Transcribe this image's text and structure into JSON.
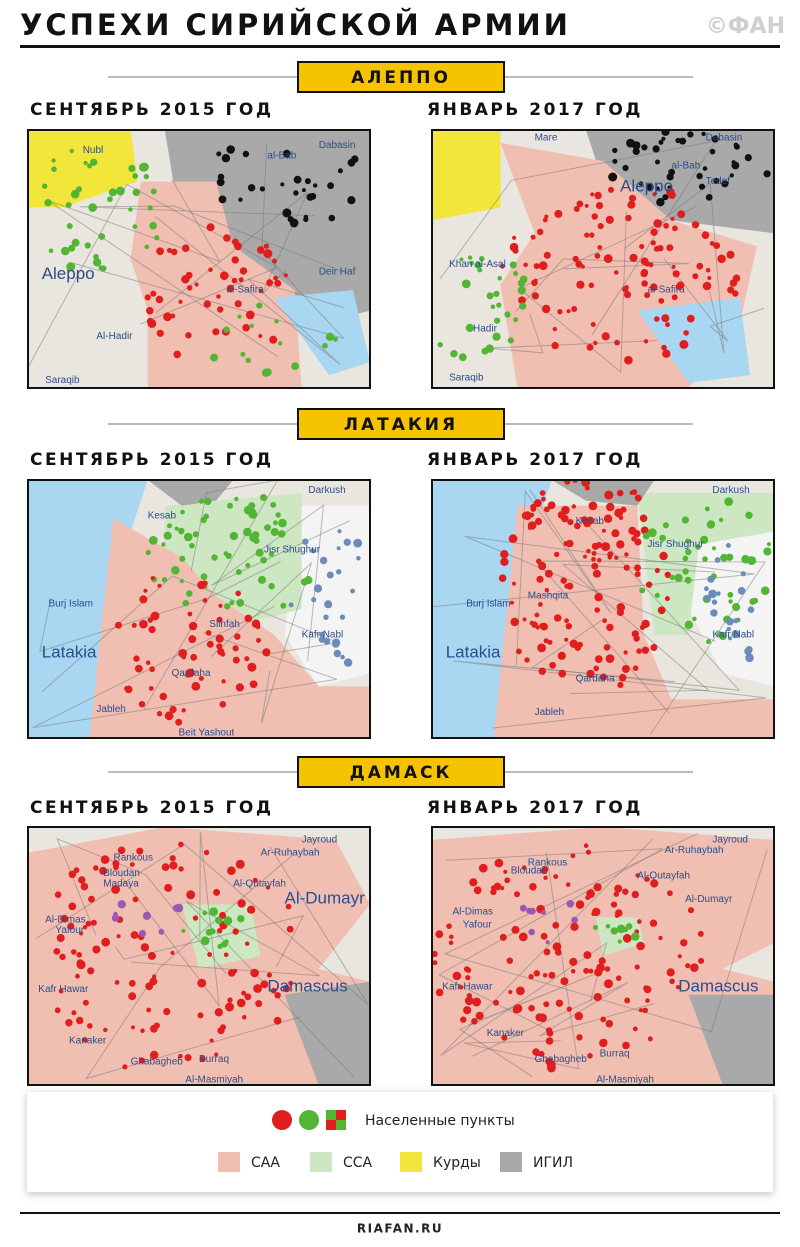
{
  "header": {
    "title": "УСПЕХИ СИРИЙСКОЙ АРМИИ",
    "logo": "©ФАН"
  },
  "sections": [
    {
      "name": "АЛЕППО",
      "left": "СЕНТЯБРЬ 2015 ГОД",
      "right": "ЯНВАРЬ 2017 ГОД",
      "left_labels": [
        "Nubl",
        "al-Bab",
        "Dabasin",
        "Aleppo",
        "al-Safira",
        "Deir Haf",
        "Al-Hadir",
        "Saraqib"
      ],
      "right_labels": [
        "Mare",
        "Dabasin",
        "al-Bab",
        "Tedef",
        "Aleppo",
        "Khan al-Asal",
        "al-Safira",
        "Hadir",
        "Saraqib"
      ]
    },
    {
      "name": "ЛАТАКИЯ",
      "left": "СЕНТЯБРЬ 2015 ГОД",
      "right": "ЯНВАРЬ 2017 ГОД",
      "left_labels": [
        "Darkush",
        "Kesab",
        "Jisr Shughur",
        "Burj Islam",
        "Latakia",
        "Qardaha",
        "Jableh",
        "Kafr Nabl",
        "Beit Yashout",
        "Slinfah"
      ],
      "right_labels": [
        "Darkush",
        "Kesab",
        "Jisr Shughur",
        "Burj Islam",
        "Mashqita",
        "Latakia",
        "Qardaha",
        "Jableh",
        "Kafr Nabl"
      ]
    },
    {
      "name": "ДАМАСК",
      "left": "СЕНТЯБРЬ 2015 ГОД",
      "right": "ЯНВАРЬ 2017 ГОД",
      "left_labels": [
        "Jayroud",
        "Rankous",
        "Ar-Ruhaybah",
        "Al-Qutayfah",
        "Al-Dumayr",
        "Bloudan",
        "Madaya",
        "Al-Dimas",
        "Yafour",
        "Damascus",
        "Kafr Hawar",
        "Kanaker",
        "Ghabagheb",
        "Burraq",
        "Al-Masmiyah"
      ],
      "right_labels": [
        "Jayroud",
        "Rankous",
        "Ar-Ruhaybah",
        "Al-Qutayfah",
        "Al-Dumayr",
        "Bloudan",
        "Al-Dimas",
        "Yafour",
        "Damascus",
        "Kafr Hawar",
        "Kanaker",
        "Ghabagheb",
        "Burraq",
        "Al-Masmiyah"
      ]
    }
  ],
  "legend": {
    "settlements": "Населенные пункты",
    "items": [
      "САА",
      "ССА",
      "Курды",
      "ИГИЛ"
    ]
  },
  "footer": "RIAFAN.RU"
}
